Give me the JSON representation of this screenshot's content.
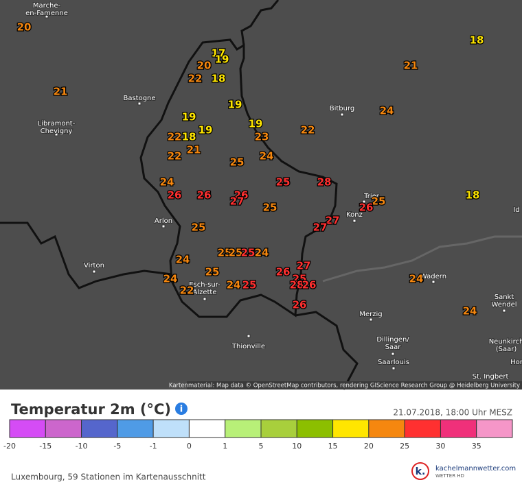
{
  "map": {
    "places": [
      {
        "lines": [
          "Marche-",
          "en-Famenne"
        ]
      },
      {
        "lines": [
          "Bastogne"
        ]
      },
      {
        "lines": [
          "Libramont-",
          "Chevigny"
        ]
      },
      {
        "lines": [
          "Bitburg"
        ]
      },
      {
        "lines": [
          "Arlon"
        ]
      },
      {
        "lines": [
          "Virton"
        ]
      },
      {
        "lines": [
          "Trier"
        ]
      },
      {
        "lines": [
          "Konz"
        ]
      },
      {
        "lines": [
          "Esch-sur-",
          "Alzette"
        ]
      },
      {
        "lines": [
          "Wadern"
        ]
      },
      {
        "lines": [
          "Sankt",
          "Wendel"
        ]
      },
      {
        "lines": [
          "Merzig"
        ]
      },
      {
        "lines": [
          "Dillingen/",
          "Saar"
        ]
      },
      {
        "lines": [
          "Saarlouis"
        ]
      },
      {
        "lines": [
          "Thionville"
        ]
      },
      {
        "lines": [
          "Neunkirch",
          "(Saar)"
        ]
      },
      {
        "lines": [
          "St. Ingbert"
        ]
      },
      {
        "lines": [
          "Id"
        ]
      },
      {
        "lines": [
          "Hor"
        ]
      }
    ],
    "attribution": "Kartenmaterial: Map data © OpenStreetMap contributors, rendering GIScience Research Group @ Heidelberg University",
    "temperatures": [
      {
        "value": 20,
        "color": "#f5870f"
      },
      {
        "value": 17,
        "color": "#ffe600"
      },
      {
        "value": 19,
        "color": "#ffe600"
      },
      {
        "value": 20,
        "color": "#f5870f"
      },
      {
        "value": 22,
        "color": "#f5870f"
      },
      {
        "value": 18,
        "color": "#ffe600"
      },
      {
        "value": 21,
        "color": "#f5870f"
      },
      {
        "value": 19,
        "color": "#ffe600"
      },
      {
        "value": 19,
        "color": "#ffe600"
      },
      {
        "value": 19,
        "color": "#ffe600"
      },
      {
        "value": 19,
        "color": "#ffe600"
      },
      {
        "value": 22,
        "color": "#f5870f"
      },
      {
        "value": 18,
        "color": "#ffe600"
      },
      {
        "value": 23,
        "color": "#f5870f"
      },
      {
        "value": 21,
        "color": "#f5870f"
      },
      {
        "value": 22,
        "color": "#f5870f"
      },
      {
        "value": 24,
        "color": "#f5870f"
      },
      {
        "value": 25,
        "color": "#f5870f"
      },
      {
        "value": 24,
        "color": "#f5870f"
      },
      {
        "value": 26,
        "color": "#ff3030"
      },
      {
        "value": 26,
        "color": "#ff3030"
      },
      {
        "value": 26,
        "color": "#ff3030"
      },
      {
        "value": 27,
        "color": "#ff3030"
      },
      {
        "value": 25,
        "color": "#ff3030"
      },
      {
        "value": 25,
        "color": "#f5870f"
      },
      {
        "value": 28,
        "color": "#ff3030"
      },
      {
        "value": 22,
        "color": "#f5870f"
      },
      {
        "value": 24,
        "color": "#f5870f"
      },
      {
        "value": 21,
        "color": "#f5870f"
      },
      {
        "value": 18,
        "color": "#ffe600"
      },
      {
        "value": 18,
        "color": "#ffe600"
      },
      {
        "value": 25,
        "color": "#f5870f"
      },
      {
        "value": 26,
        "color": "#ff3030"
      },
      {
        "value": 27,
        "color": "#ff3030"
      },
      {
        "value": 27,
        "color": "#ff3030"
      },
      {
        "value": 25,
        "color": "#f5870f"
      },
      {
        "value": 25,
        "color": "#f5870f"
      },
      {
        "value": 25,
        "color": "#f5870f"
      },
      {
        "value": 25,
        "color": "#ff3030"
      },
      {
        "value": 24,
        "color": "#f5870f"
      },
      {
        "value": 24,
        "color": "#f5870f"
      },
      {
        "value": 25,
        "color": "#f5870f"
      },
      {
        "value": 24,
        "color": "#f5870f"
      },
      {
        "value": 22,
        "color": "#f5870f"
      },
      {
        "value": 24,
        "color": "#f5870f"
      },
      {
        "value": 25,
        "color": "#ff3030"
      },
      {
        "value": 26,
        "color": "#ff3030"
      },
      {
        "value": 27,
        "color": "#ff3030"
      },
      {
        "value": 25,
        "color": "#ff3030"
      },
      {
        "value": 28,
        "color": "#ff3030"
      },
      {
        "value": 26,
        "color": "#ff3030"
      },
      {
        "value": 26,
        "color": "#ff3030"
      },
      {
        "value": 24,
        "color": "#f5870f"
      },
      {
        "value": 24,
        "color": "#f5870f"
      }
    ]
  },
  "legend": {
    "title": "Temperatur 2m (°C)",
    "timestamp": "21.07.2018, 18:00 Uhr MESZ",
    "colors": [
      "#d54cf5",
      "#cc66cc",
      "#5566cc",
      "#4f9be6",
      "#bfe0fa",
      "#ffffff",
      "#b8f078",
      "#a8cf3c",
      "#8cbf00",
      "#ffe600",
      "#f5870f",
      "#ff3030",
      "#f0307a",
      "#f596c8"
    ],
    "ticks": [
      -20,
      -15,
      -10,
      -5,
      -1,
      0,
      1,
      5,
      10,
      15,
      20,
      25,
      30,
      35
    ]
  },
  "footer": "Luxembourg, 59 Stationen im Kartenausschnitt",
  "logo": {
    "mark": "k.",
    "name": "kachelmannwetter.com",
    "tagline": "WETTER HD"
  }
}
